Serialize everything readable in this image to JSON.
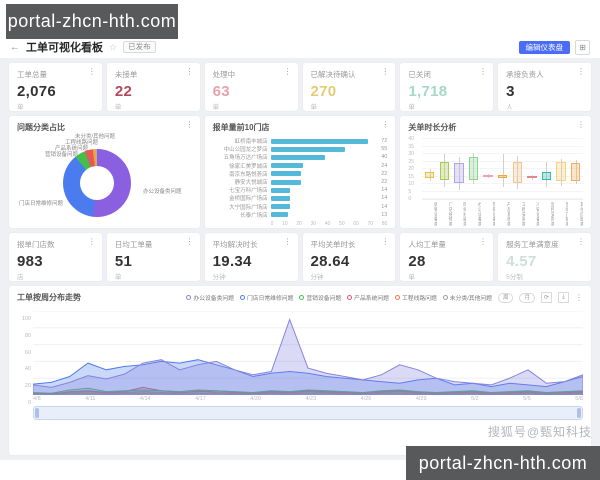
{
  "watermark": {
    "text": "portal-zhcn-hth.com",
    "sohu": "搜狐号@甄知科技"
  },
  "icons": {
    "more": "⋮",
    "back": "←",
    "star": "☆",
    "grid": "⊞",
    "restore": "⟳",
    "save": "⤓"
  },
  "header": {
    "title": "工单可视化看板",
    "badge": "已发布",
    "edit_button": "编辑仪表盘",
    "accent": "#4a6cf7"
  },
  "kpi_row1": [
    {
      "title": "工单总量",
      "value": "2,076",
      "unit": "单",
      "color": "#333333"
    },
    {
      "title": "未接单",
      "value": "22",
      "unit": "单",
      "color": "#b5495b"
    },
    {
      "title": "处理中",
      "value": "63",
      "unit": "单",
      "color": "#e8a2ac"
    },
    {
      "title": "已解决待确认",
      "value": "270",
      "unit": "单",
      "color": "#e2cc74"
    },
    {
      "title": "已关闭",
      "value": "1,718",
      "unit": "单",
      "color": "#a5d9c3"
    },
    {
      "title": "承接负责人",
      "value": "3",
      "unit": "人",
      "color": "#333333"
    }
  ],
  "kpi_row2": [
    {
      "title": "报单门店数",
      "value": "983",
      "unit": "店",
      "color": "#333333"
    },
    {
      "title": "日均工单量",
      "value": "51",
      "unit": "单",
      "color": "#333333"
    },
    {
      "title": "平均解决时长",
      "value": "19.34",
      "unit": "分钟",
      "color": "#333333"
    },
    {
      "title": "平均关单时长",
      "value": "28.64",
      "unit": "分钟",
      "color": "#333333"
    },
    {
      "title": "人均工单量",
      "value": "28",
      "unit": "单",
      "color": "#333333"
    },
    {
      "title": "服务工单满意度",
      "value": "4.57",
      "unit": "5分制",
      "color": "#cfe0d8"
    }
  ],
  "chart_data": [
    {
      "type": "pie",
      "donut": true,
      "title": "问题分类占比",
      "slices": [
        {
          "label": "办公设备类问题",
          "value": 52,
          "color": "#8a5fe0"
        },
        {
          "label": "门店日常维修问题",
          "value": 37,
          "color": "#4a7cf0"
        },
        {
          "label": "营销设备问题",
          "value": 5,
          "color": "#44c04a"
        },
        {
          "label": "产品系统问题",
          "value": 4,
          "color": "#e45a5a"
        },
        {
          "label": "工程线路问题",
          "value": 1.5,
          "color": "#f0a43c"
        },
        {
          "label": "未分类/其他问题",
          "value": 0.5,
          "color": "#b0b0b0"
        }
      ]
    },
    {
      "type": "bar",
      "orientation": "horizontal",
      "title": "报单量前10门店",
      "color": "#54b9db",
      "xlim": [
        0,
        80
      ],
      "x_ticks": [
        0,
        10,
        20,
        30,
        40,
        50,
        60,
        70,
        80
      ],
      "categories": [
        "虹桥南丰城店",
        "中山公园龙之梦店",
        "五角场万达广场店",
        "徐家汇美罗城店",
        "南京东路悦荟店",
        "静安大悦城店",
        "七宝万科广场店",
        "金桥国际广场店",
        "大宁国际广场店",
        "长泰广场店"
      ],
      "values": [
        72,
        55,
        40,
        24,
        22,
        22,
        14,
        14,
        14,
        13
      ]
    },
    {
      "type": "boxplot",
      "title": "关单时长分析",
      "ylim": [
        0,
        40
      ],
      "y_ticks": [
        0,
        5,
        10,
        15,
        20,
        25,
        30,
        35,
        40
      ],
      "categories": [
        "收银设备类",
        "门店维修类",
        "网络线路类",
        "办公设备类",
        "营销设备类",
        "产品系统类",
        "工程安装类",
        "冷链设备类",
        "监控安防类",
        "音响广播类",
        "其他问题类"
      ],
      "boxes": [
        {
          "min": 12,
          "q1": 14,
          "q3": 18,
          "max": 20,
          "color": "#e6c34a"
        },
        {
          "min": 8,
          "q1": 13,
          "q3": 25,
          "max": 30,
          "color": "#a9c94f"
        },
        {
          "min": 6,
          "q1": 11,
          "q3": 24,
          "max": 28,
          "color": "#b3a6e8"
        },
        {
          "min": 10,
          "q1": 13,
          "q3": 28,
          "max": 31,
          "color": "#8fd48f"
        },
        {
          "min": 14,
          "q1": 15,
          "q3": 16,
          "max": 17,
          "color": "#f2a0b4"
        },
        {
          "min": 8,
          "q1": 14,
          "q3": 16,
          "max": 30,
          "color": "#f0a43c"
        },
        {
          "min": 7,
          "q1": 11,
          "q3": 25,
          "max": 29,
          "color": "#f3c48e"
        },
        {
          "min": 13,
          "q1": 14,
          "q3": 15,
          "max": 16,
          "color": "#e08888"
        },
        {
          "min": 8,
          "q1": 13,
          "q3": 18,
          "max": 25,
          "color": "#35b8b0"
        },
        {
          "min": 9,
          "q1": 12,
          "q3": 25,
          "max": 27,
          "color": "#f5d37e"
        },
        {
          "min": 10,
          "q1": 12,
          "q3": 24,
          "max": 26,
          "color": "#f0b060"
        }
      ]
    },
    {
      "type": "area",
      "title": "工单按周分布走势",
      "ylim": [
        0,
        100
      ],
      "y_ticks": [
        0,
        20,
        40,
        60,
        80,
        100
      ],
      "x_labels": [
        "4/8",
        "4/11",
        "4/14",
        "4/17",
        "4/20",
        "4/23",
        "4/26",
        "4/29",
        "5/2",
        "5/5",
        "5/8"
      ],
      "toggles": [
        "周",
        "月"
      ],
      "series": [
        {
          "name": "办公设备类问题",
          "color": "#8585e0",
          "values": [
            12,
            9,
            15,
            23,
            19,
            25,
            38,
            42,
            30,
            36,
            40,
            30,
            24,
            28,
            90,
            32,
            26,
            22,
            18,
            24,
            36,
            30,
            20,
            16,
            14,
            12,
            20,
            30,
            14,
            16,
            24
          ]
        },
        {
          "name": "门店日常维修问题",
          "color": "#4f7df0",
          "values": [
            13,
            15,
            22,
            38,
            30,
            34,
            36,
            40,
            38,
            42,
            36,
            30,
            22,
            26,
            28,
            26,
            22,
            20,
            18,
            16,
            14,
            18,
            20,
            12,
            14,
            10,
            14,
            12,
            10,
            16,
            22
          ]
        },
        {
          "name": "营销设备问题",
          "color": "#49c24b",
          "values": [
            3,
            2,
            6,
            8,
            4,
            5,
            6,
            5,
            4,
            6,
            5,
            4,
            3,
            5,
            4,
            6,
            5,
            4,
            3,
            5,
            6,
            4,
            3,
            4,
            5,
            3,
            4,
            5,
            3,
            4,
            5
          ]
        },
        {
          "name": "产品系统问题",
          "color": "#e0566e",
          "values": [
            2,
            1,
            4,
            5,
            3,
            4,
            9,
            5,
            3,
            4,
            5,
            3,
            2,
            4,
            3,
            5,
            4,
            3,
            2,
            4,
            5,
            3,
            2,
            3,
            4,
            2,
            3,
            4,
            2,
            3,
            4
          ]
        },
        {
          "name": "工程线路问题",
          "color": "#f07c4a",
          "values": [
            1,
            2,
            3,
            4,
            2,
            3,
            4,
            3,
            2,
            5,
            3,
            2,
            1,
            3,
            2,
            4,
            3,
            2,
            1,
            3,
            4,
            2,
            1,
            2,
            3,
            1,
            2,
            3,
            1,
            2,
            3
          ]
        },
        {
          "name": "未分类/其他问题",
          "color": "#9aa0a6",
          "values": [
            1,
            1,
            2,
            2,
            1,
            2,
            2,
            2,
            1,
            2,
            2,
            1,
            1,
            2,
            1,
            2,
            2,
            1,
            1,
            2,
            2,
            1,
            1,
            1,
            2,
            1,
            1,
            2,
            1,
            1,
            2
          ]
        }
      ]
    }
  ]
}
